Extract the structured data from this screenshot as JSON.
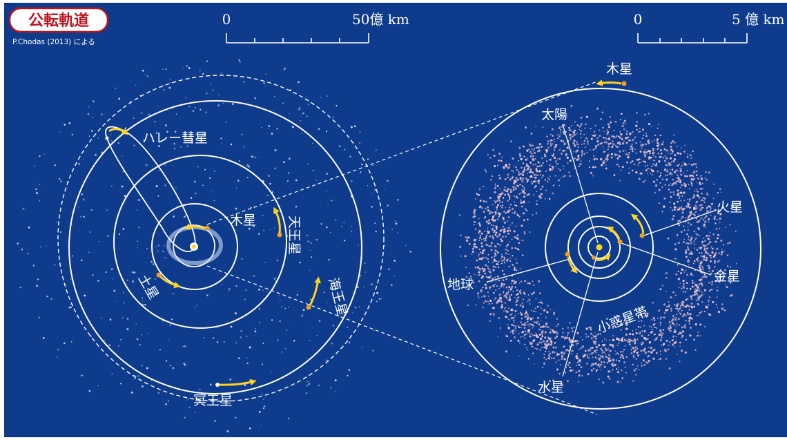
{
  "title": "公転軌道",
  "credit": "P.Chodas (2013) による",
  "colors": {
    "background": "#0e3b8c",
    "orbit": "#ffffff",
    "arrow": "#ffd21f",
    "planet_dot": "#f0a020",
    "asteroid": "#f4c6d2",
    "title_text": "#c0121a"
  },
  "scale_outer": {
    "zero": "0",
    "max": "50億 km"
  },
  "scale_inner": {
    "zero": "0",
    "max": "5 億 km"
  },
  "outer_panel": {
    "labels": {
      "halley": "ハレー彗星",
      "jupiter": "木星",
      "saturn": "土星",
      "uranus": "天王星",
      "neptune": "海王星",
      "pluto": "冥王星"
    }
  },
  "inner_panel": {
    "labels": {
      "jupiter": "木星",
      "sun": "太陽",
      "mars": "火星",
      "earth": "地球",
      "venus": "金星",
      "mercury": "水星",
      "asteroid_belt": "小惑星帯"
    }
  }
}
